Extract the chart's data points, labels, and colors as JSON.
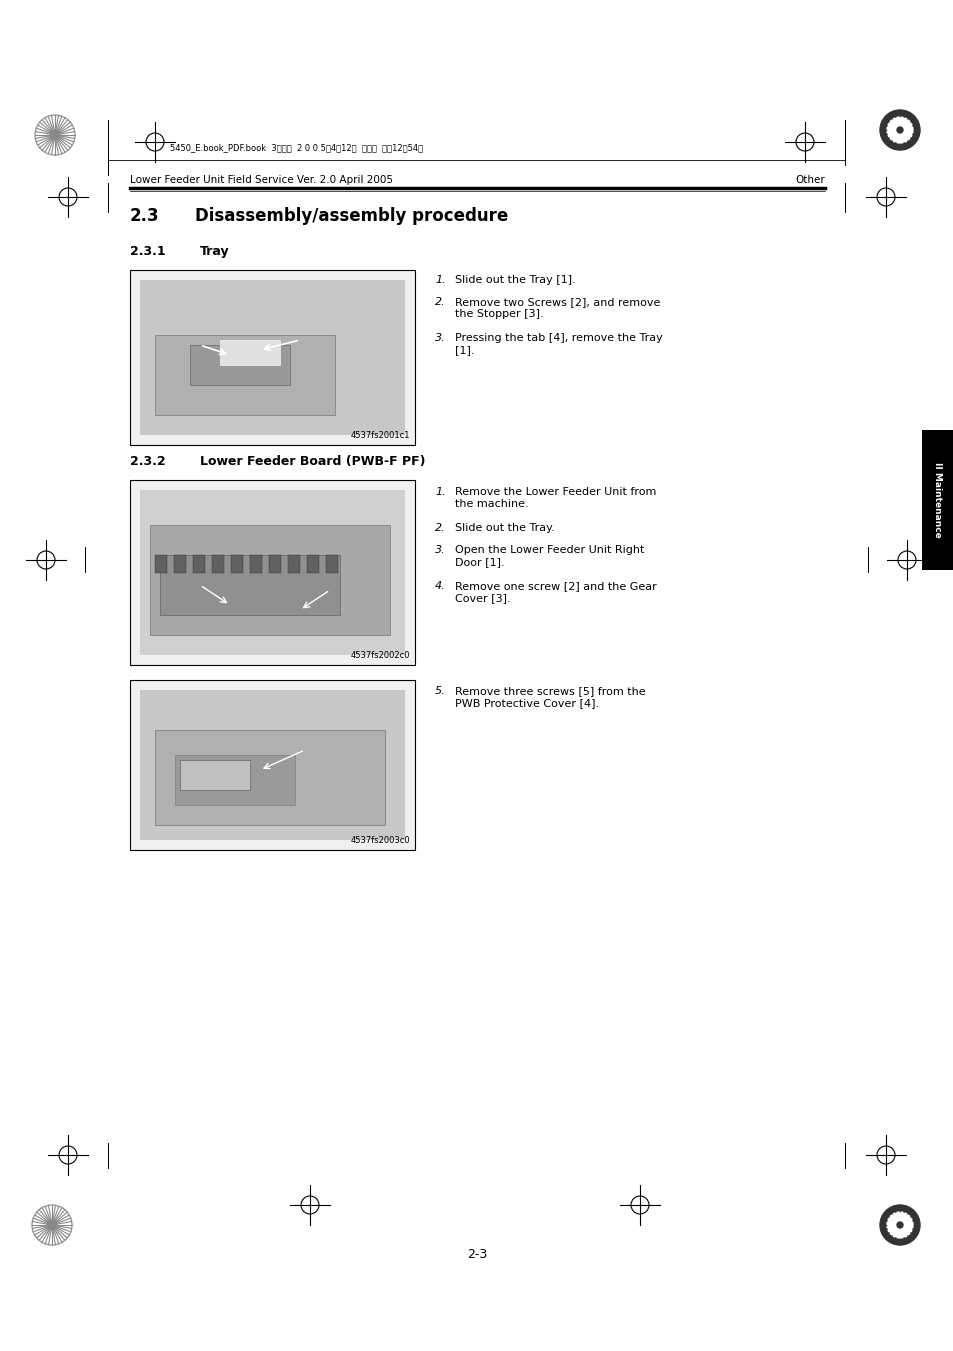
{
  "bg_color": "#ffffff",
  "page_width": 9.54,
  "page_height": 13.51,
  "header_text_left": "Lower Feeder Unit Field Service Ver. 2.0 April 2005",
  "header_text_right": "Other",
  "top_strip_text": "5450_E.book_PDF.book  3ページ  2 0 0 5年4月12日  火曜日  午後12時54分",
  "image1_caption": "4537fs2001c1",
  "image2_caption": "4537fs2002c0",
  "image3_caption": "4537fs2003c0",
  "page_number": "2-3",
  "sidebar_color": "#000000"
}
